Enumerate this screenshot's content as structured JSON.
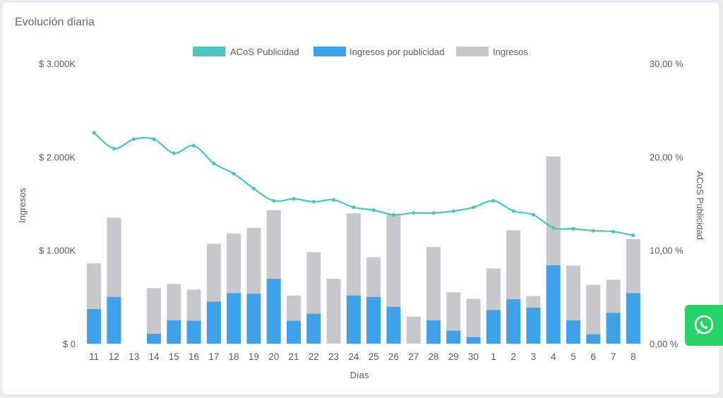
{
  "card": {
    "title": "Evolución diaria"
  },
  "whatsapp": {
    "icon": "whatsapp-icon"
  },
  "colors": {
    "acos": "#4dc4c2",
    "ads": "#3ea2ea",
    "total": "#c7c8cc"
  },
  "chart_data": {
    "type": "bar",
    "categories": [
      "11",
      "12",
      "13",
      "14",
      "15",
      "16",
      "17",
      "18",
      "19",
      "20",
      "21",
      "22",
      "23",
      "24",
      "25",
      "26",
      "27",
      "28",
      "29",
      "30",
      "1",
      "2",
      "3",
      "4",
      "5",
      "6",
      "7",
      "8"
    ],
    "series": [
      {
        "name": "ACoS Publicidad",
        "kind": "line",
        "axis": "right",
        "values": [
          22.6,
          20.9,
          21.9,
          21.9,
          20.4,
          21.2,
          19.3,
          18.2,
          16.6,
          15.3,
          15.5,
          15.2,
          15.4,
          14.6,
          14.3,
          13.8,
          14.0,
          14.0,
          14.2,
          14.6,
          15.3,
          14.2,
          13.8,
          12.4,
          12.3,
          12.1,
          12.0,
          11.6
        ]
      },
      {
        "name": "Ingresos por publicidad",
        "kind": "bar",
        "axis": "left",
        "values": [
          370,
          500,
          0,
          105,
          250,
          245,
          450,
          540,
          535,
          695,
          245,
          320,
          0,
          515,
          500,
          395,
          0,
          250,
          140,
          70,
          360,
          475,
          385,
          840,
          250,
          100,
          330,
          540
        ]
      },
      {
        "name": "Ingresos",
        "kind": "bar",
        "axis": "left",
        "values": [
          860,
          1350,
          0,
          595,
          640,
          580,
          1070,
          1180,
          1240,
          1430,
          515,
          980,
          695,
          1395,
          925,
          1390,
          290,
          1035,
          550,
          480,
          805,
          1215,
          510,
          2005,
          835,
          630,
          685,
          1120
        ]
      }
    ],
    "xlabel": "Días",
    "ylabel": "Ingresos",
    "y2label": "ACoS Publicidad",
    "ylim": [
      0,
      3000
    ],
    "y2lim": [
      0,
      30
    ],
    "yticks": [
      "$ 0",
      "$ 1.000K",
      "$ 2.000K",
      "$ 3.000K"
    ],
    "y2ticks": [
      "0,00 %",
      "10,00 %",
      "20,00 %",
      "30,00 %"
    ],
    "legend_position": "top-center",
    "grid": false
  }
}
